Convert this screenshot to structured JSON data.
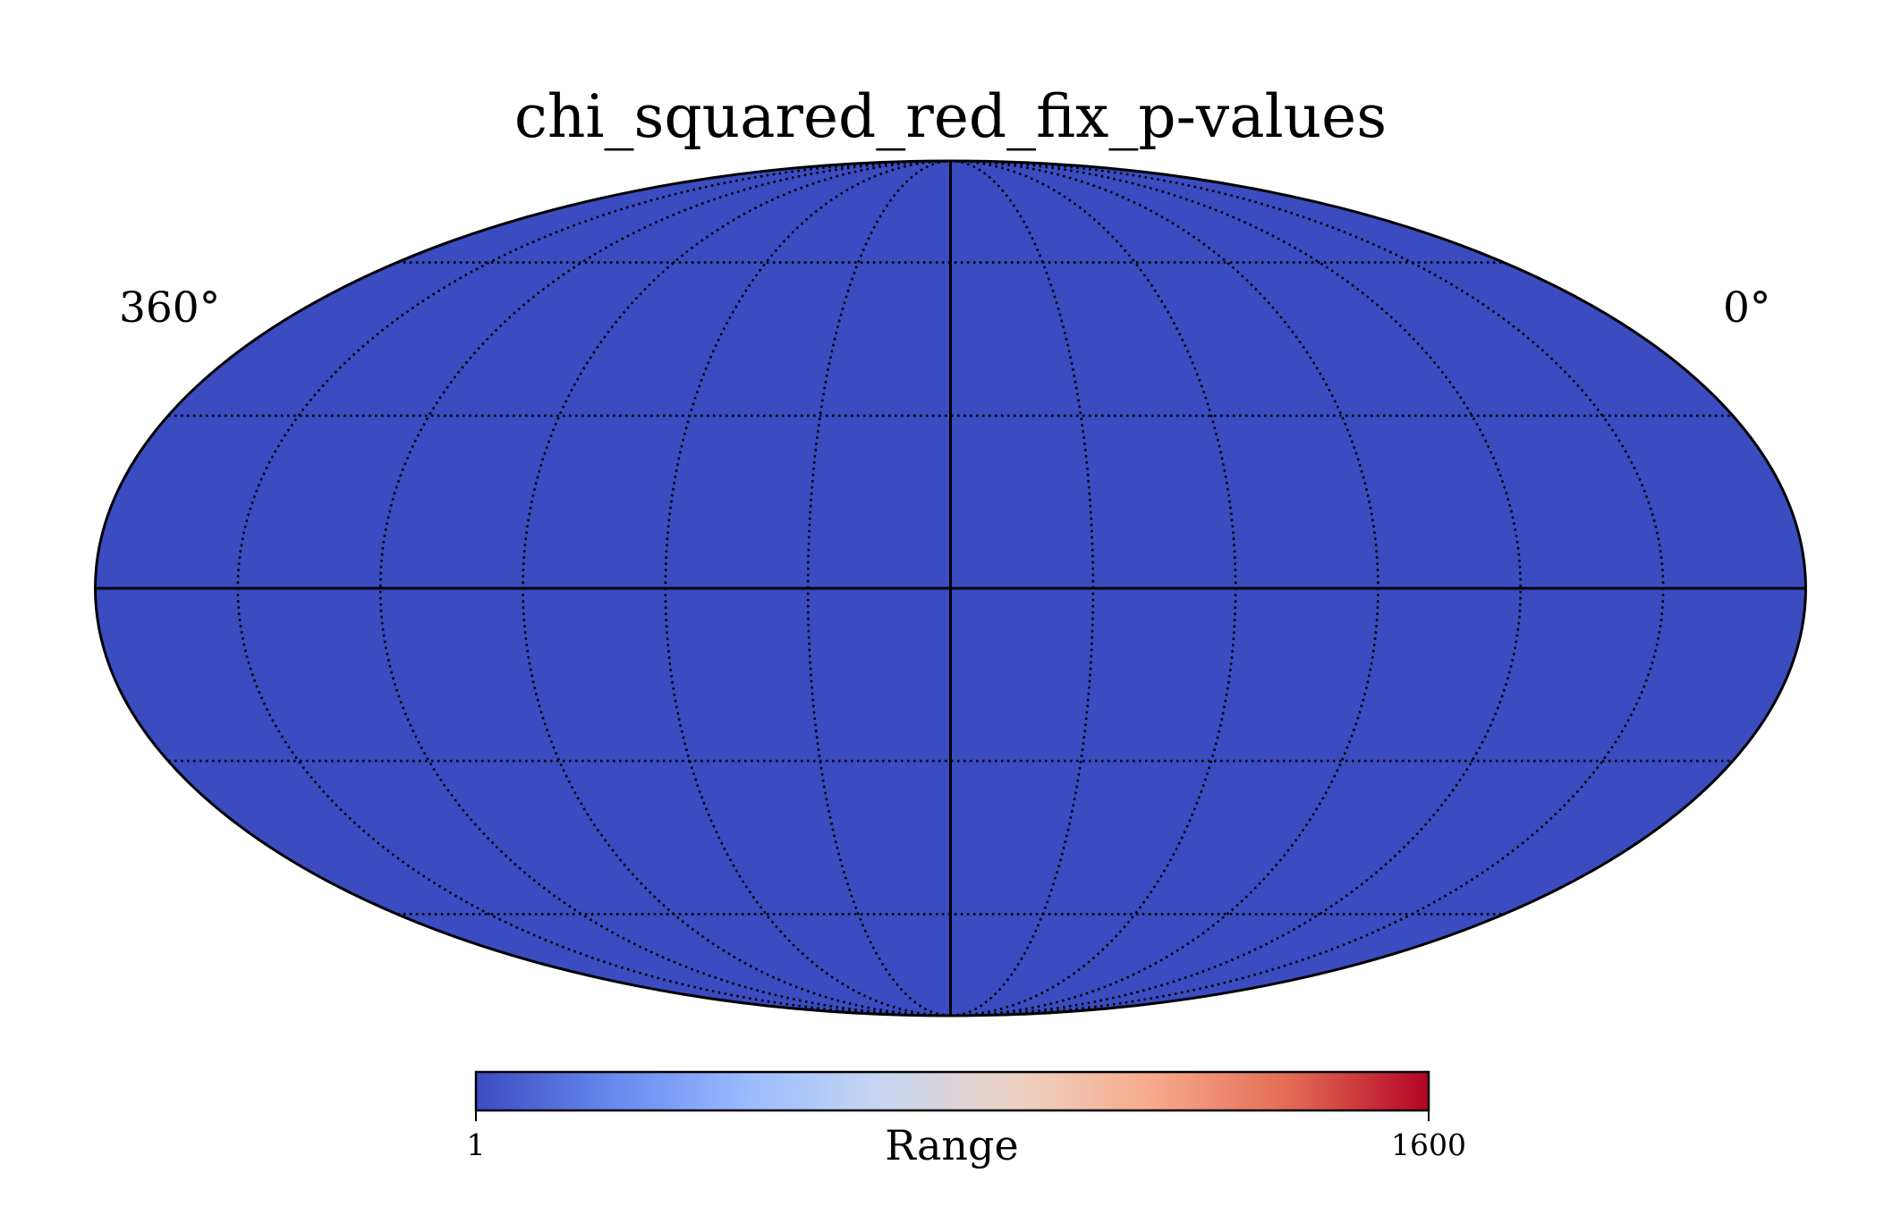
{
  "chart_data": {
    "type": "heatmap",
    "projection": "mollweide",
    "title": "chi_squared_red_fix_p-values",
    "map_fill_value": 1,
    "map_fill_color": "#3a4cc0",
    "longitude_labels": [
      "360°",
      "0°"
    ],
    "longitude_label_values": [
      360,
      0
    ],
    "meridian_step_deg": 30,
    "parallel_step_deg": 30,
    "colorbar": {
      "label": "Range",
      "min": 1,
      "max": 1600,
      "tick_labels": [
        "1",
        "1600"
      ],
      "colormap": "coolwarm",
      "colormap_stops": [
        "#3b4cc0",
        "#6788ee",
        "#9abbff",
        "#c9d7f0",
        "#edd1c2",
        "#f7a889",
        "#e26952",
        "#b40426"
      ]
    }
  }
}
